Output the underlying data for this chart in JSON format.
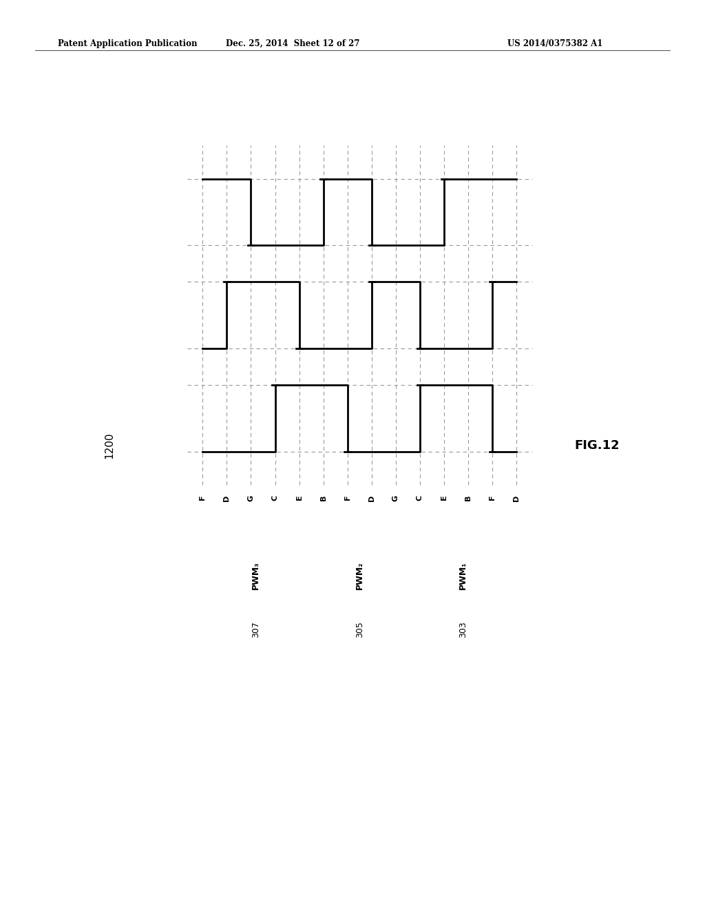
{
  "header_left": "Patent Application Publication",
  "header_mid": "Dec. 25, 2014  Sheet 12 of 27",
  "header_right": "US 2014/0375382 A1",
  "fig_label": "FIG.12",
  "diagram_label": "1200",
  "background": "#ffffff",
  "line_color": "#000000",
  "dash_color": "#999999",
  "time_labels": [
    "F",
    "D",
    "G",
    "C",
    "E",
    "B",
    "F",
    "D",
    "G",
    "C",
    "E",
    "B",
    "F",
    "D"
  ],
  "signal_names": [
    "PWM₃",
    "PWM₂",
    "PWM₁"
  ],
  "signal_numbers": [
    "307",
    "305",
    "303"
  ],
  "pwm3_vals": [
    1,
    1,
    0,
    0,
    0,
    1,
    1,
    0,
    0,
    0,
    1,
    1,
    1,
    1
  ],
  "pwm2_vals": [
    0,
    1,
    1,
    1,
    0,
    0,
    0,
    1,
    1,
    0,
    0,
    0,
    1,
    1
  ],
  "pwm1_vals": [
    0,
    0,
    0,
    1,
    1,
    1,
    0,
    0,
    0,
    1,
    1,
    1,
    0,
    0
  ]
}
